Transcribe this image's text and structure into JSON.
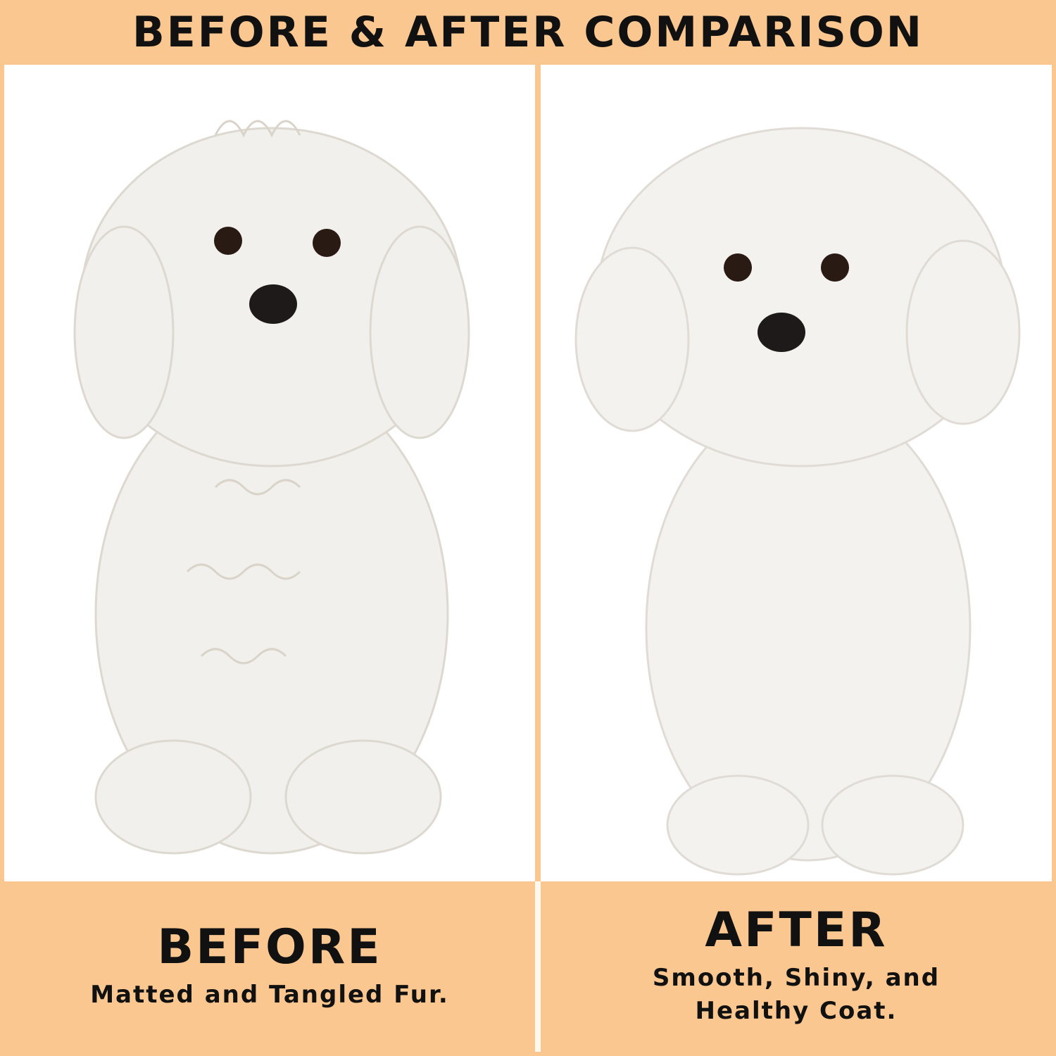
{
  "header": {
    "title": "BEFORE & AFTER COMPARISON"
  },
  "before": {
    "label": "BEFORE",
    "description": "Matted and Tangled Fur."
  },
  "after": {
    "label": "AFTER",
    "description": "Smooth, Shiny, and\nHealthy Coat."
  },
  "colors": {
    "accent": "#F9C78F",
    "text": "#111111",
    "panel": "#FFFFFF"
  }
}
